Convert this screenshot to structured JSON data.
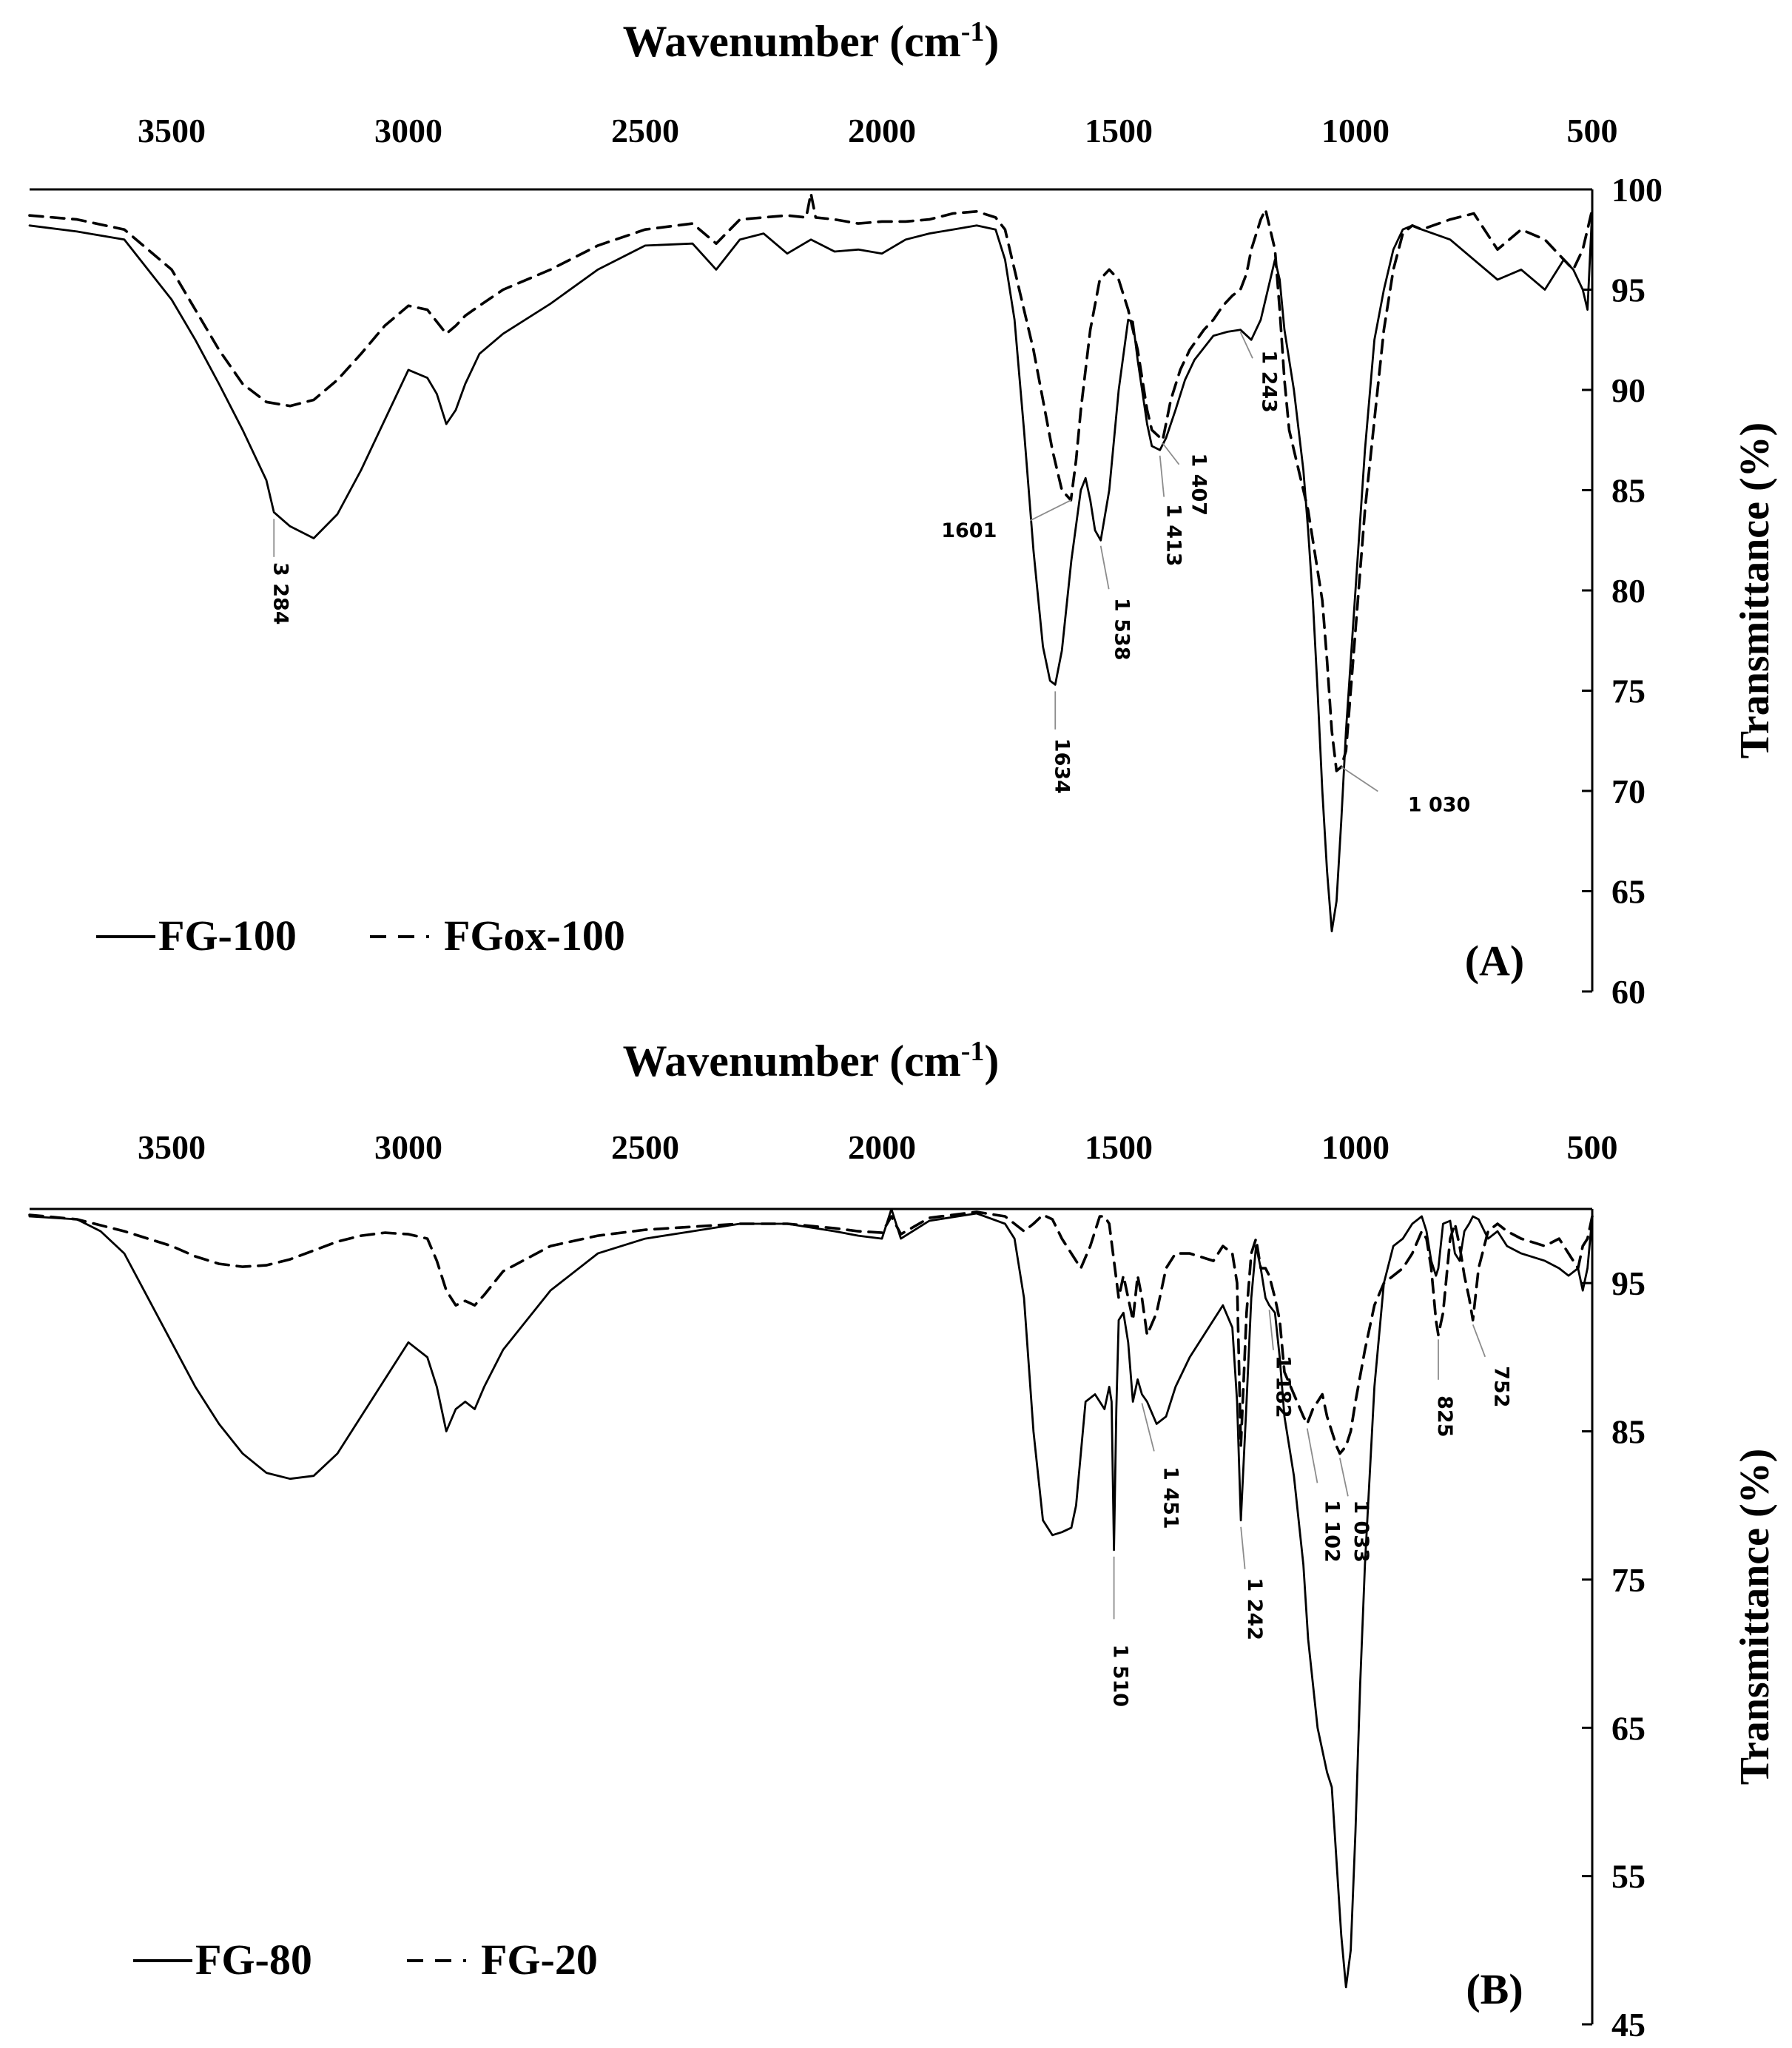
{
  "chart_data": [
    {
      "type": "line",
      "panel_label": "(A)",
      "xlabel": "Wavenumber (cm",
      "xlabel_sup": "-1",
      "xlabel_close": ")",
      "ylabel": "Transmittance (%)",
      "xlim": [
        3800,
        500
      ],
      "x_reversed": true,
      "ylim": [
        60,
        100
      ],
      "x_ticks": [
        "3500",
        "3000",
        "2500",
        "2000",
        "1500",
        "1000",
        "500"
      ],
      "y_ticks": [
        "100",
        "95",
        "90",
        "85",
        "80",
        "75",
        "70",
        "65",
        "60"
      ],
      "legend": "bottom-left",
      "grid": false,
      "series": [
        {
          "name": "FG-100",
          "style": "solid",
          "x": [
            3800,
            3700,
            3600,
            3500,
            3450,
            3400,
            3350,
            3300,
            3284,
            3250,
            3200,
            3150,
            3100,
            3050,
            3000,
            2960,
            2940,
            2920,
            2900,
            2880,
            2850,
            2800,
            2700,
            2600,
            2500,
            2400,
            2350,
            2300,
            2250,
            2200,
            2150,
            2100,
            2050,
            2000,
            1950,
            1900,
            1850,
            1800,
            1760,
            1740,
            1720,
            1700,
            1680,
            1660,
            1645,
            1634,
            1620,
            1600,
            1580,
            1570,
            1560,
            1550,
            1538,
            1520,
            1500,
            1480,
            1470,
            1460,
            1440,
            1430,
            1413,
            1400,
            1380,
            1360,
            1340,
            1300,
            1270,
            1243,
            1220,
            1200,
            1180,
            1170,
            1160,
            1150,
            1130,
            1110,
            1100,
            1090,
            1080,
            1070,
            1060,
            1050,
            1040,
            1030,
            1020,
            1000,
            980,
            960,
            940,
            920,
            900,
            880,
            860,
            800,
            750,
            700,
            650,
            600,
            560,
            540,
            520,
            510,
            500
          ],
          "y": [
            98.2,
            97.9,
            97.5,
            94.5,
            92.5,
            90.3,
            88.0,
            85.5,
            83.9,
            83.2,
            82.6,
            83.8,
            86.0,
            88.5,
            91.0,
            90.6,
            89.8,
            88.3,
            89.0,
            90.3,
            91.8,
            92.8,
            94.3,
            96.0,
            97.2,
            97.3,
            96.0,
            97.5,
            97.8,
            96.8,
            97.5,
            96.9,
            97.0,
            96.8,
            97.5,
            97.8,
            98.0,
            98.2,
            98.0,
            96.5,
            93.5,
            88.0,
            82.0,
            77.2,
            75.5,
            75.3,
            77.0,
            81.5,
            85.0,
            85.6,
            84.5,
            83.0,
            82.5,
            85.0,
            90.0,
            93.5,
            93.4,
            91.5,
            88.3,
            87.2,
            87.0,
            87.6,
            89.0,
            90.5,
            91.5,
            92.7,
            92.9,
            93.0,
            92.5,
            93.5,
            95.5,
            96.5,
            95.5,
            93.0,
            90.0,
            86.0,
            83.0,
            79.5,
            75.0,
            70.0,
            66.0,
            63.0,
            64.5,
            68.5,
            73.0,
            80.0,
            87.0,
            92.5,
            95.0,
            97.0,
            98.0,
            98.2,
            98.0,
            97.5,
            96.5,
            95.5,
            96.0,
            95.0,
            96.5,
            96.0,
            95.0,
            94.0,
            99.0
          ]
        },
        {
          "name": "FGox-100",
          "style": "dashed",
          "x": [
            3800,
            3700,
            3600,
            3500,
            3450,
            3400,
            3350,
            3300,
            3250,
            3200,
            3150,
            3100,
            3050,
            3000,
            2960,
            2940,
            2920,
            2900,
            2880,
            2850,
            2800,
            2700,
            2600,
            2500,
            2400,
            2350,
            2300,
            2250,
            2200,
            2160,
            2150,
            2140,
            2100,
            2050,
            2000,
            1950,
            1900,
            1850,
            1800,
            1760,
            1740,
            1720,
            1700,
            1680,
            1660,
            1640,
            1620,
            1601,
            1590,
            1580,
            1560,
            1540,
            1520,
            1500,
            1480,
            1460,
            1440,
            1430,
            1407,
            1390,
            1370,
            1350,
            1320,
            1300,
            1280,
            1260,
            1243,
            1230,
            1220,
            1200,
            1190,
            1180,
            1170,
            1160,
            1150,
            1140,
            1120,
            1100,
            1080,
            1070,
            1060,
            1050,
            1040,
            1030,
            1020,
            1010,
            1000,
            980,
            960,
            940,
            920,
            900,
            880,
            860,
            800,
            750,
            700,
            650,
            600,
            560,
            540,
            520,
            510,
            500
          ],
          "y": [
            98.7,
            98.5,
            98.0,
            96.0,
            94.0,
            92.0,
            90.3,
            89.4,
            89.2,
            89.5,
            90.5,
            91.8,
            93.2,
            94.2,
            94.0,
            93.4,
            92.8,
            93.2,
            93.7,
            94.2,
            95.0,
            96.0,
            97.2,
            98.0,
            98.3,
            97.3,
            98.5,
            98.6,
            98.7,
            98.6,
            99.8,
            98.6,
            98.5,
            98.3,
            98.4,
            98.4,
            98.5,
            98.8,
            98.9,
            98.6,
            98.0,
            96.0,
            94.0,
            92.0,
            89.5,
            87.0,
            85.0,
            84.5,
            86.5,
            89.0,
            93.0,
            95.5,
            96.0,
            95.5,
            94.0,
            92.0,
            89.0,
            88.0,
            87.5,
            89.5,
            91.0,
            92.0,
            93.0,
            93.5,
            94.2,
            94.7,
            95.0,
            95.8,
            97.0,
            98.5,
            99.0,
            98.0,
            97.0,
            94.0,
            90.5,
            88.0,
            86.0,
            84.0,
            81.0,
            79.5,
            76.5,
            73.0,
            71.0,
            71.2,
            72.0,
            75.0,
            78.0,
            84.0,
            88.5,
            93.0,
            96.0,
            97.8,
            98.2,
            98.0,
            98.5,
            98.8,
            97.0,
            98.0,
            97.5,
            96.5,
            96.0,
            97.0,
            98.0,
            99.0
          ]
        }
      ],
      "annotations": [
        {
          "text": "3 284",
          "x": 3284,
          "y": 83.9
        },
        {
          "text": "1634",
          "x": 1634,
          "y": 75.3
        },
        {
          "text": "1601",
          "x": 1601,
          "y": 84.5
        },
        {
          "text": "1 538",
          "x": 1538,
          "y": 82.5
        },
        {
          "text": "1 413",
          "x": 1413,
          "y": 87.0
        },
        {
          "text": "1 407",
          "x": 1407,
          "y": 87.5
        },
        {
          "text": "1 243",
          "x": 1243,
          "y": 93.0
        },
        {
          "text": "1 030",
          "x": 1030,
          "y": 71.2
        }
      ]
    },
    {
      "type": "line",
      "panel_label": "(B)",
      "xlabel": "Wavenumber (cm",
      "xlabel_sup": "-1",
      "xlabel_close": ")",
      "ylabel": "Transmittance (%)",
      "xlim": [
        3800,
        500
      ],
      "x_reversed": true,
      "ylim": [
        45,
        100
      ],
      "x_ticks": [
        "3500",
        "3000",
        "2500",
        "2000",
        "1500",
        "1000",
        "500"
      ],
      "y_ticks": [
        "95",
        "85",
        "75",
        "65",
        "55",
        "45"
      ],
      "legend": "bottom-left",
      "grid": false,
      "series": [
        {
          "name": "FG-80",
          "style": "solid",
          "x": [
            3800,
            3700,
            3650,
            3600,
            3550,
            3500,
            3450,
            3400,
            3350,
            3300,
            3250,
            3200,
            3150,
            3100,
            3050,
            3000,
            2960,
            2940,
            2920,
            2900,
            2880,
            2860,
            2840,
            2800,
            2700,
            2600,
            2500,
            2400,
            2300,
            2200,
            2100,
            2050,
            2000,
            1980,
            1960,
            1900,
            1800,
            1740,
            1720,
            1700,
            1680,
            1660,
            1640,
            1620,
            1600,
            1590,
            1570,
            1550,
            1530,
            1520,
            1515,
            1510,
            1505,
            1500,
            1490,
            1480,
            1470,
            1460,
            1451,
            1440,
            1420,
            1400,
            1380,
            1350,
            1300,
            1280,
            1260,
            1250,
            1242,
            1230,
            1220,
            1210,
            1200,
            1190,
            1182,
            1170,
            1160,
            1150,
            1130,
            1110,
            1100,
            1080,
            1060,
            1050,
            1040,
            1030,
            1020,
            1010,
            1000,
            990,
            980,
            960,
            940,
            920,
            900,
            880,
            860,
            850,
            840,
            830,
            825,
            815,
            800,
            790,
            780,
            770,
            760,
            752,
            740,
            720,
            700,
            680,
            650,
            600,
            570,
            550,
            530,
            520,
            510,
            500
          ],
          "y": [
            99.5,
            99.3,
            98.5,
            97.0,
            94.0,
            91.0,
            88.0,
            85.5,
            83.5,
            82.2,
            81.8,
            82.0,
            83.5,
            86.0,
            88.5,
            91.0,
            90.0,
            88.0,
            85.0,
            86.5,
            87.0,
            86.5,
            88.0,
            90.5,
            94.5,
            97.0,
            98.0,
            98.5,
            99.0,
            99.0,
            98.5,
            98.2,
            98.0,
            100.0,
            98.0,
            99.2,
            99.7,
            99.0,
            98.0,
            94.0,
            85.0,
            79.0,
            78.0,
            78.2,
            78.5,
            80.0,
            87.0,
            87.5,
            86.5,
            88.0,
            87.0,
            77.0,
            86.5,
            92.5,
            93.0,
            91.0,
            87.0,
            88.5,
            87.5,
            87.0,
            85.5,
            86.0,
            88.0,
            90.0,
            92.5,
            93.5,
            92.0,
            87.0,
            79.0,
            87.0,
            94.0,
            97.5,
            96.0,
            94.0,
            93.5,
            93.0,
            90.0,
            86.0,
            82.0,
            76.0,
            71.0,
            65.0,
            62.0,
            61.0,
            56.0,
            51.0,
            47.5,
            50.0,
            58.0,
            68.0,
            76.0,
            88.0,
            95.0,
            97.5,
            98.0,
            99.0,
            99.5,
            98.5,
            96.5,
            95.5,
            96.0,
            99.0,
            99.2,
            97.0,
            96.5,
            98.5,
            99.0,
            99.5,
            99.3,
            98.0,
            98.5,
            97.5,
            97.0,
            96.5,
            96.0,
            95.5,
            96.0,
            94.5,
            96.0,
            99.5
          ]
        },
        {
          "name": "FG-20",
          "style": "dashed",
          "x": [
            3800,
            3700,
            3600,
            3500,
            3450,
            3400,
            3350,
            3300,
            3250,
            3200,
            3150,
            3100,
            3050,
            3000,
            2960,
            2940,
            2920,
            2900,
            2880,
            2860,
            2840,
            2800,
            2700,
            2600,
            2500,
            2400,
            2300,
            2200,
            2100,
            2050,
            2000,
            1980,
            1960,
            1900,
            1800,
            1740,
            1720,
            1700,
            1680,
            1660,
            1640,
            1620,
            1600,
            1580,
            1560,
            1540,
            1530,
            1520,
            1510,
            1500,
            1490,
            1480,
            1470,
            1460,
            1451,
            1440,
            1420,
            1400,
            1380,
            1350,
            1300,
            1280,
            1260,
            1250,
            1242,
            1230,
            1220,
            1210,
            1200,
            1190,
            1182,
            1170,
            1160,
            1150,
            1130,
            1110,
            1102,
            1090,
            1080,
            1070,
            1060,
            1050,
            1040,
            1033,
            1020,
            1010,
            1000,
            980,
            960,
            940,
            920,
            900,
            880,
            860,
            850,
            840,
            830,
            825,
            815,
            800,
            790,
            780,
            770,
            760,
            752,
            740,
            720,
            700,
            680,
            650,
            600,
            570,
            550,
            530,
            520,
            510,
            500
          ],
          "y": [
            99.6,
            99.3,
            98.5,
            97.5,
            96.8,
            96.3,
            96.1,
            96.2,
            96.6,
            97.2,
            97.8,
            98.2,
            98.4,
            98.3,
            98.0,
            96.5,
            94.5,
            93.5,
            93.8,
            93.5,
            94.2,
            95.8,
            97.5,
            98.2,
            98.6,
            98.8,
            99.0,
            99.0,
            98.7,
            98.5,
            98.4,
            99.5,
            98.3,
            99.4,
            99.8,
            99.5,
            99.0,
            98.5,
            99.0,
            99.6,
            99.3,
            98.0,
            97.0,
            96.0,
            97.5,
            99.5,
            99.5,
            99.0,
            96.5,
            94.0,
            95.5,
            94.0,
            92.5,
            95.5,
            94.0,
            91.5,
            93.0,
            96.0,
            97.0,
            97.0,
            96.5,
            97.5,
            97.0,
            95.0,
            84.0,
            93.0,
            97.0,
            98.0,
            96.0,
            96.0,
            95.5,
            94.0,
            92.5,
            89.0,
            87.5,
            86.0,
            85.5,
            86.5,
            87.0,
            87.5,
            86.0,
            85.0,
            84.0,
            83.5,
            84.0,
            85.0,
            87.0,
            90.5,
            93.5,
            95.0,
            95.5,
            96.0,
            97.0,
            98.5,
            98.0,
            96.0,
            92.5,
            91.5,
            93.0,
            98.0,
            99.0,
            97.5,
            95.5,
            94.0,
            92.5,
            96.0,
            98.5,
            99.0,
            98.5,
            98.0,
            97.5,
            98.0,
            97.0,
            96.0,
            97.5,
            98.0,
            99.5
          ]
        }
      ],
      "annotations": [
        {
          "text": "1 510",
          "x": 1510,
          "y": 77.0
        },
        {
          "text": "1 451",
          "x": 1451,
          "y": 87.5
        },
        {
          "text": "1 242",
          "x": 1242,
          "y": 79.0
        },
        {
          "text": "1 182",
          "x": 1182,
          "y": 93.5
        },
        {
          "text": "1 102",
          "x": 1102,
          "y": 85.5
        },
        {
          "text": "1 033",
          "x": 1033,
          "y": 83.5
        },
        {
          "text": "825",
          "x": 825,
          "y": 91.5
        },
        {
          "text": "752",
          "x": 752,
          "y": 92.5
        }
      ]
    }
  ]
}
